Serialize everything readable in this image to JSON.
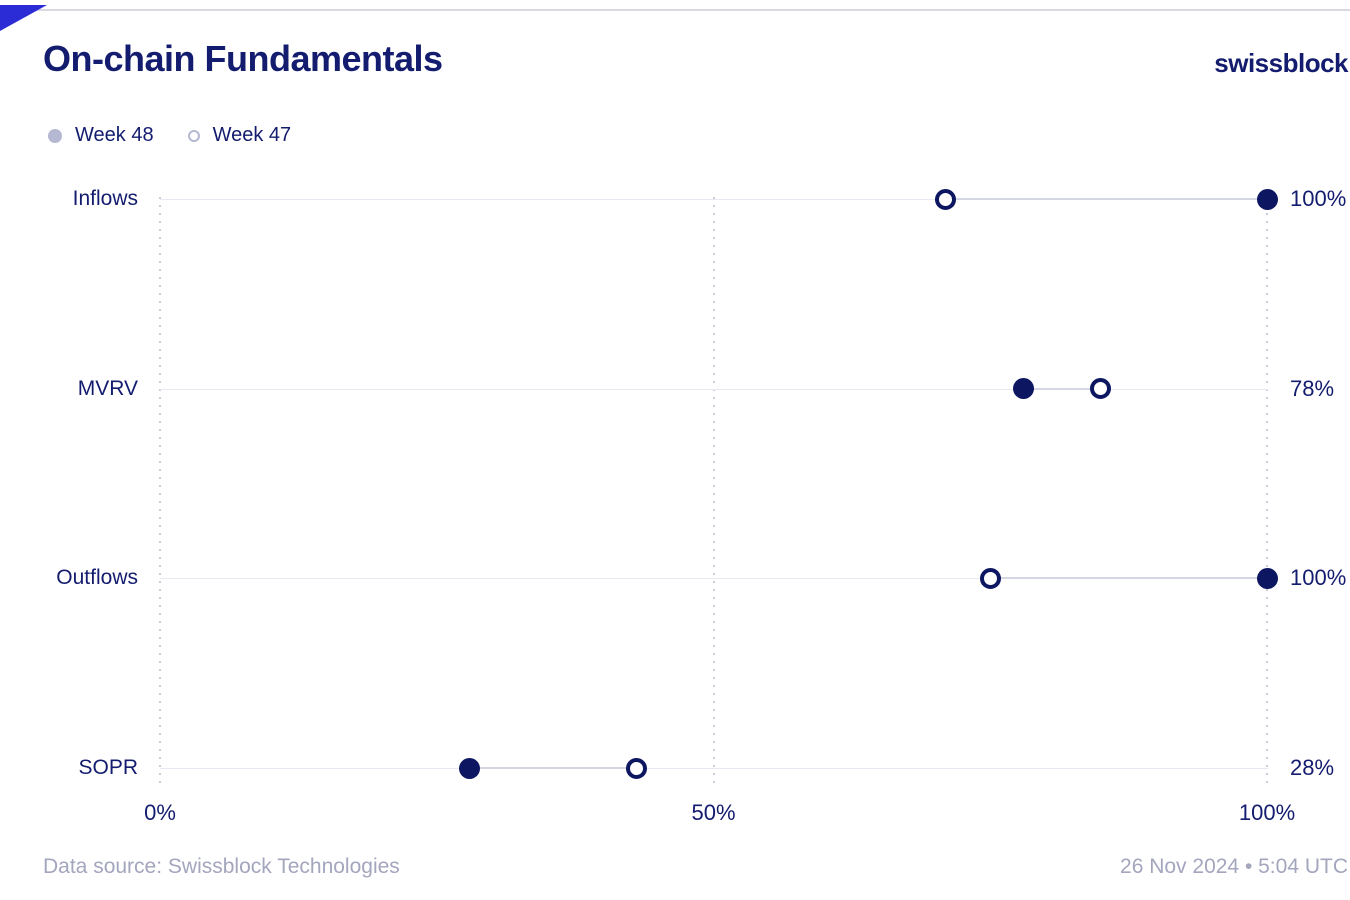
{
  "header": {
    "title": "On-chain Fundamentals",
    "logo": "swissblock"
  },
  "legend": [
    {
      "label": "Week 48",
      "marker": "filled"
    },
    {
      "label": "Week 47",
      "marker": "open"
    }
  ],
  "chart_data": {
    "type": "scatter",
    "subtype": "dumbbell-dot-plot",
    "title": "On-chain Fundamentals",
    "categories": [
      "Inflows",
      "MVRV",
      "Outflows",
      "SOPR"
    ],
    "series": [
      {
        "name": "Week 48",
        "marker": "filled",
        "values": [
          100,
          78,
          100,
          28
        ]
      },
      {
        "name": "Week 47",
        "marker": "open",
        "values": [
          71,
          85,
          75,
          43
        ]
      }
    ],
    "value_labels": [
      "100%",
      "78%",
      "100%",
      "28%"
    ],
    "xlim": [
      0,
      100
    ],
    "xticks": [
      0,
      50,
      100
    ],
    "xtick_labels": [
      "0%",
      "50%",
      "100%"
    ],
    "grid": "dotted vertical gridlines at ticks",
    "legend_position": "top-left"
  },
  "footer": {
    "source": "Data source: Swissblock Technologies",
    "timestamp": "26 Nov 2024 • 5:04 UTC"
  },
  "colors": {
    "navy_text": "#131c6e",
    "dot_navy": "#0d1660",
    "accent_triangle": "#2c2cd6",
    "legend_muted": "#b5b8d2",
    "row_line": "#e8e9f2",
    "connector": "#d4d6e4",
    "grid_dot": "#caccd9",
    "footer_text": "#a3a6bd"
  }
}
